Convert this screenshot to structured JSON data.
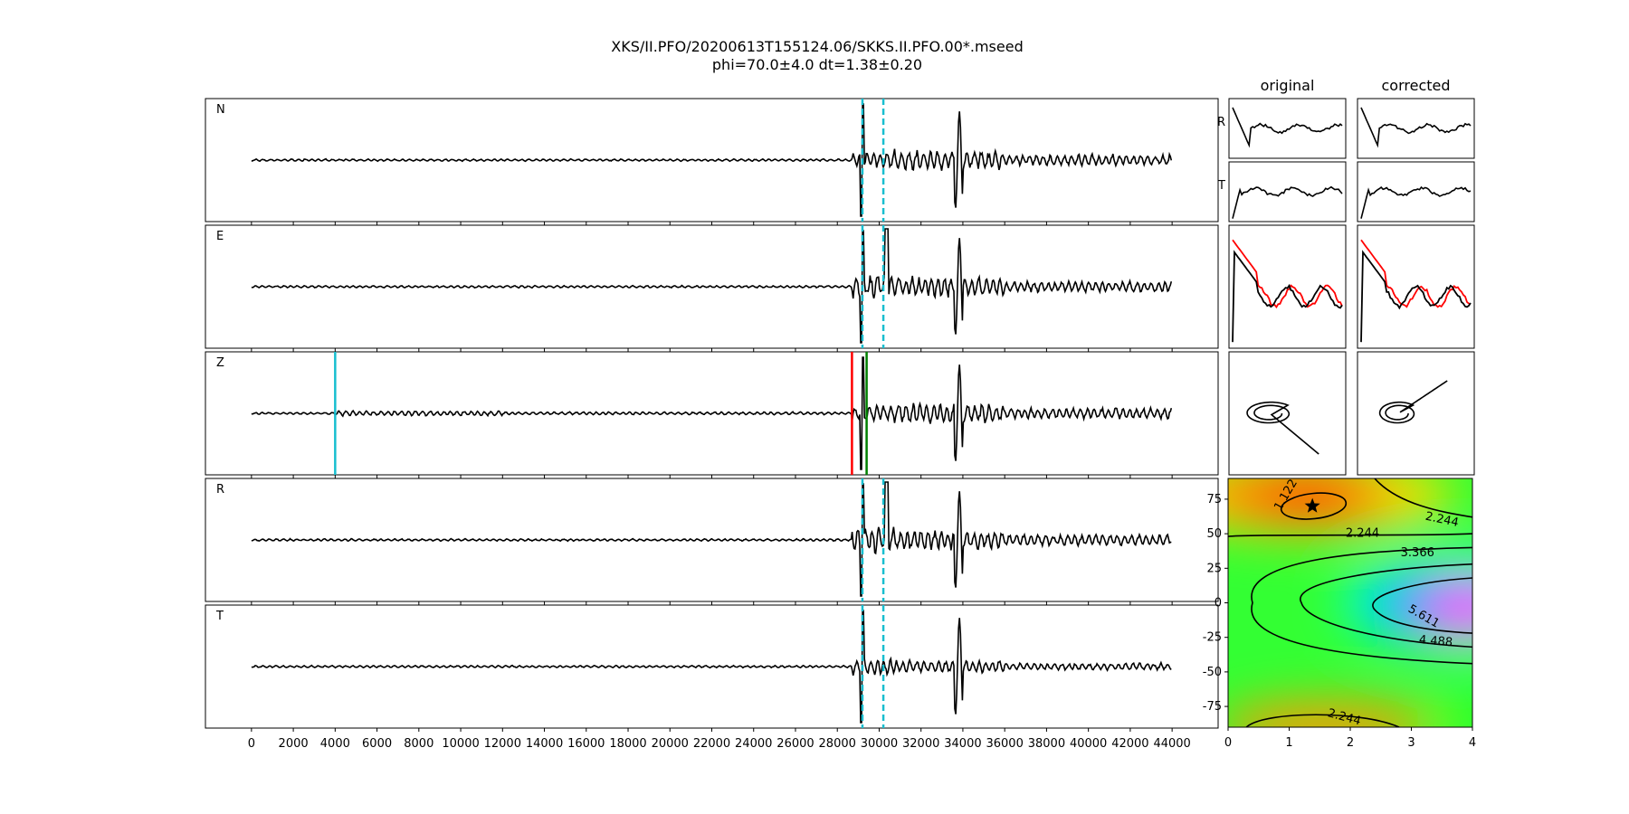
{
  "figure": {
    "title_line1": "XKS/II.PFO/20200613T155124.06/SKKS.II.PFO.00*.mseed",
    "title_line2": "phi=70.0±4.0 dt=1.38±0.20"
  },
  "chart_data": [
    {
      "type": "line",
      "name": "seismograms",
      "x_range": [
        0,
        44000
      ],
      "xlim": [
        -2200,
        46200
      ],
      "x_ticks": [
        0,
        2000,
        4000,
        6000,
        8000,
        10000,
        12000,
        14000,
        16000,
        18000,
        20000,
        22000,
        24000,
        26000,
        28000,
        30000,
        32000,
        34000,
        36000,
        38000,
        40000,
        42000,
        44000
      ],
      "panels": [
        {
          "label": "N",
          "markers": [
            {
              "x": 29200,
              "color": "#17becf",
              "style": "dashed"
            },
            {
              "x": 30200,
              "color": "#17becf",
              "style": "dashed"
            }
          ]
        },
        {
          "label": "E",
          "markers": [
            {
              "x": 29200,
              "color": "#17becf",
              "style": "dashed"
            },
            {
              "x": 30200,
              "color": "#17becf",
              "style": "dashed"
            }
          ]
        },
        {
          "label": "Z",
          "markers": [
            {
              "x": 4000,
              "color": "#17becf",
              "style": "solid"
            },
            {
              "x": 28700,
              "color": "#ff0000",
              "style": "solid"
            },
            {
              "x": 29400,
              "color": "#008000",
              "style": "solid"
            }
          ]
        },
        {
          "label": "R",
          "markers": [
            {
              "x": 29200,
              "color": "#17becf",
              "style": "dashed"
            },
            {
              "x": 30200,
              "color": "#17becf",
              "style": "dashed"
            }
          ]
        },
        {
          "label": "T",
          "markers": [
            {
              "x": 29200,
              "color": "#17becf",
              "style": "dashed"
            },
            {
              "x": 30200,
              "color": "#17becf",
              "style": "dashed"
            }
          ]
        }
      ],
      "arrival_window": [
        29200,
        30200
      ],
      "line_color": "#000000"
    },
    {
      "type": "line",
      "name": "waveform-comparison",
      "columns": [
        "original",
        "corrected"
      ],
      "row_labels": [
        "R",
        "T",
        "",
        ""
      ],
      "overlay_colors": [
        "#ff0000",
        "#000000"
      ]
    },
    {
      "type": "heatmap",
      "name": "error-surface",
      "xlim": [
        0,
        4
      ],
      "ylim": [
        -90,
        90
      ],
      "x_ticks": [
        0,
        1,
        2,
        3,
        4
      ],
      "y_ticks": [
        75,
        50,
        25,
        0,
        -25,
        -50,
        -75
      ],
      "contour_labels": [
        "1.122",
        "2.244",
        "2.244",
        "3.366",
        "5.611",
        "4.488",
        "2.244"
      ],
      "best_fit": {
        "dt": 1.38,
        "phi": 70.0
      },
      "colormap": "gist_rainbow"
    }
  ]
}
